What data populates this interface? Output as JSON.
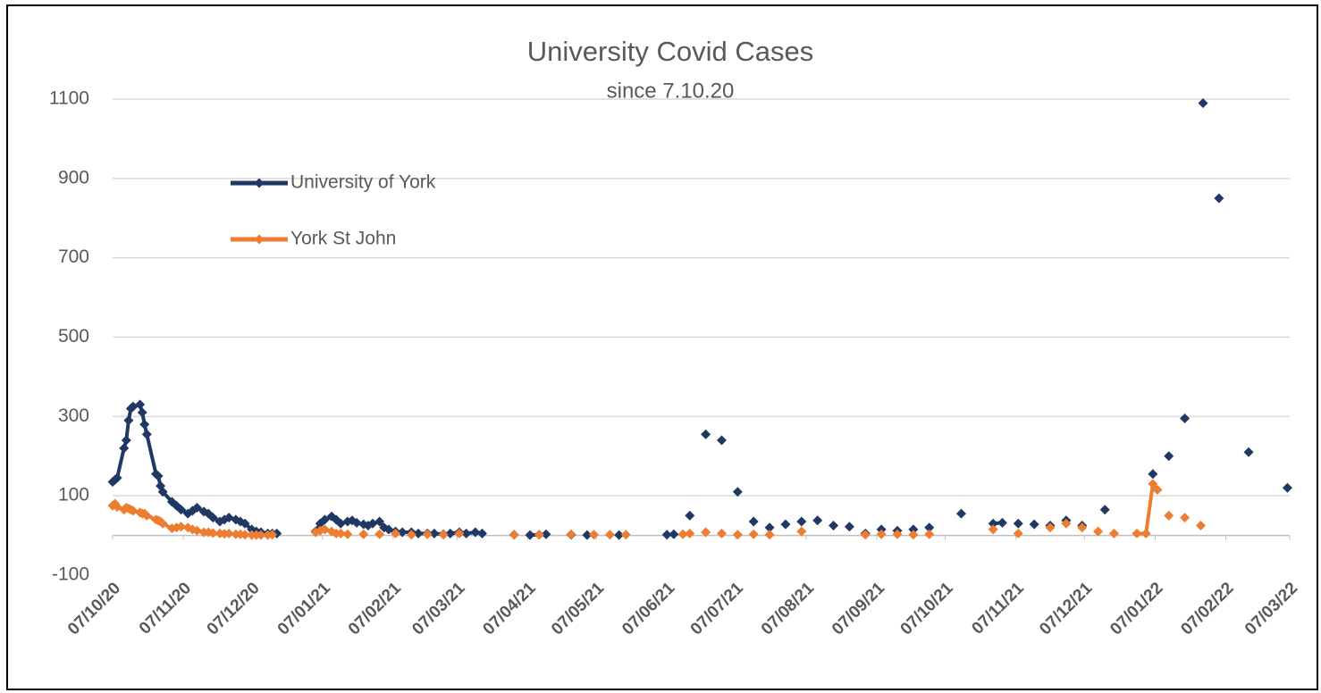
{
  "chart_data": {
    "type": "line",
    "title": "University Covid Cases",
    "subtitle": "since 7.10.20",
    "xlim": [
      "2020-10-07",
      "2022-03-07"
    ],
    "xticks": [
      {
        "value": "2020-10-07",
        "label": "07/10/20"
      },
      {
        "value": "2020-11-07",
        "label": "07/11/20"
      },
      {
        "value": "2020-12-07",
        "label": "07/12/20"
      },
      {
        "value": "2021-01-07",
        "label": "07/01/21"
      },
      {
        "value": "2021-02-07",
        "label": "07/02/21"
      },
      {
        "value": "2021-03-07",
        "label": "07/03/21"
      },
      {
        "value": "2021-04-07",
        "label": "07/04/21"
      },
      {
        "value": "2021-05-07",
        "label": "07/05/21"
      },
      {
        "value": "2021-06-07",
        "label": "07/06/21"
      },
      {
        "value": "2021-07-07",
        "label": "07/07/21"
      },
      {
        "value": "2021-08-07",
        "label": "07/08/21"
      },
      {
        "value": "2021-09-07",
        "label": "07/09/21"
      },
      {
        "value": "2021-10-07",
        "label": "07/10/21"
      },
      {
        "value": "2021-11-07",
        "label": "07/11/21"
      },
      {
        "value": "2021-12-07",
        "label": "07/12/21"
      },
      {
        "value": "2022-01-07",
        "label": "07/01/22"
      },
      {
        "value": "2022-02-07",
        "label": "07/02/22"
      },
      {
        "value": "2022-03-07",
        "label": "07/03/22"
      }
    ],
    "ylim": [
      -100,
      1100
    ],
    "yticks": [
      -100,
      100,
      300,
      500,
      700,
      900,
      1100
    ],
    "grid": true,
    "legend": "upper left",
    "series": [
      {
        "name": "University of York",
        "color": "#1f3864",
        "x": [
          "2020-10-07",
          "2020-10-08",
          "2020-10-09",
          "2020-10-12",
          "2020-10-13",
          "2020-10-14",
          "2020-10-15",
          "2020-10-16",
          "2020-10-19",
          "2020-10-20",
          "2020-10-21",
          "2020-10-22",
          "2020-10-26",
          "2020-10-27",
          "2020-10-28",
          "2020-10-29",
          "2020-11-02",
          "2020-11-04",
          "2020-11-06",
          "2020-11-09",
          "2020-11-11",
          "2020-11-13",
          "2020-11-16",
          "2020-11-18",
          "2020-11-20",
          "2020-11-23",
          "2020-11-25",
          "2020-11-27",
          "2020-11-30",
          "2020-12-02",
          "2020-12-04",
          "2020-12-07",
          "2020-12-09",
          "2020-12-11",
          "2020-12-14",
          "2020-12-16",
          "2020-12-18",
          "2021-01-04",
          "2021-01-06",
          "2021-01-08",
          "2021-01-11",
          "2021-01-13",
          "2021-01-15",
          "2021-01-18",
          "2021-01-20",
          "2021-01-22",
          "2021-01-25",
          "2021-01-27",
          "2021-01-29",
          "2021-02-01",
          "2021-02-03",
          "2021-02-05",
          "2021-02-08",
          "2021-02-11",
          "2021-02-15",
          "2021-02-18",
          "2021-02-22",
          "2021-02-25",
          "2021-03-01",
          "2021-03-04",
          "2021-03-08",
          "2021-03-11",
          "2021-03-15",
          "2021-03-18",
          "2021-04-01",
          "2021-04-08",
          "2021-04-12",
          "2021-04-15",
          "2021-04-26",
          "2021-05-03",
          "2021-05-17",
          "2021-06-07",
          "2021-06-10",
          "2021-06-17",
          "2021-06-24",
          "2021-07-01",
          "2021-07-08",
          "2021-07-15",
          "2021-07-22",
          "2021-07-29",
          "2021-08-05",
          "2021-08-12",
          "2021-08-19",
          "2021-08-26",
          "2021-09-02",
          "2021-09-09",
          "2021-09-16",
          "2021-09-23",
          "2021-09-30",
          "2021-10-14",
          "2021-10-28",
          "2021-11-01",
          "2021-11-08",
          "2021-11-15",
          "2021-11-22",
          "2021-11-29",
          "2021-12-06",
          "2021-12-16",
          "2022-01-06",
          "2022-01-13",
          "2022-01-20",
          "2022-01-28",
          "2022-02-04",
          "2022-02-17",
          "2022-03-06"
        ],
        "values": [
          135,
          140,
          145,
          220,
          240,
          290,
          320,
          325,
          330,
          310,
          280,
          255,
          155,
          150,
          125,
          110,
          85,
          75,
          65,
          55,
          62,
          70,
          60,
          55,
          45,
          35,
          40,
          45,
          40,
          35,
          30,
          15,
          10,
          8,
          5,
          5,
          5,
          10,
          30,
          40,
          48,
          40,
          30,
          35,
          38,
          32,
          28,
          25,
          30,
          35,
          20,
          15,
          10,
          8,
          8,
          5,
          5,
          5,
          3,
          5,
          8,
          5,
          8,
          5,
          2,
          1,
          2,
          3,
          2,
          1,
          1,
          2,
          3,
          50,
          255,
          240,
          110,
          35,
          20,
          28,
          35,
          38,
          25,
          22,
          5,
          15,
          12,
          15,
          20,
          55,
          30,
          32,
          30,
          28,
          25,
          38,
          25,
          65,
          155,
          200,
          295,
          1090,
          850,
          210,
          120
        ]
      },
      {
        "name": "York St John",
        "color": "#ed7d31",
        "x": [
          "2020-10-07",
          "2020-10-08",
          "2020-10-09",
          "2020-10-12",
          "2020-10-13",
          "2020-10-14",
          "2020-10-15",
          "2020-10-16",
          "2020-10-19",
          "2020-10-20",
          "2020-10-21",
          "2020-10-22",
          "2020-10-26",
          "2020-10-27",
          "2020-10-28",
          "2020-10-29",
          "2020-11-02",
          "2020-11-04",
          "2020-11-06",
          "2020-11-09",
          "2020-11-11",
          "2020-11-13",
          "2020-11-16",
          "2020-11-18",
          "2020-11-20",
          "2020-11-23",
          "2020-11-25",
          "2020-11-27",
          "2020-11-30",
          "2020-12-02",
          "2020-12-04",
          "2020-12-07",
          "2020-12-09",
          "2020-12-11",
          "2020-12-14",
          "2020-12-16",
          "2021-01-04",
          "2021-01-06",
          "2021-01-08",
          "2021-01-11",
          "2021-01-13",
          "2021-01-15",
          "2021-01-18",
          "2021-01-25",
          "2021-02-01",
          "2021-02-08",
          "2021-02-15",
          "2021-02-22",
          "2021-03-01",
          "2021-03-08",
          "2021-04-01",
          "2021-04-12",
          "2021-04-26",
          "2021-05-06",
          "2021-05-13",
          "2021-05-20",
          "2021-06-14",
          "2021-06-17",
          "2021-06-24",
          "2021-07-01",
          "2021-07-08",
          "2021-07-15",
          "2021-07-22",
          "2021-08-05",
          "2021-09-02",
          "2021-09-09",
          "2021-09-16",
          "2021-09-23",
          "2021-09-30",
          "2021-10-28",
          "2021-11-08",
          "2021-11-22",
          "2021-11-29",
          "2021-12-06",
          "2021-12-13",
          "2021-12-20",
          "2021-12-30",
          "2022-01-03",
          "2022-01-06",
          "2022-01-08",
          "2022-01-13",
          "2022-01-20",
          "2022-01-27"
        ],
        "values": [
          75,
          80,
          72,
          65,
          70,
          68,
          65,
          62,
          58,
          55,
          55,
          50,
          40,
          38,
          35,
          30,
          18,
          20,
          22,
          20,
          15,
          12,
          8,
          8,
          6,
          5,
          4,
          5,
          3,
          3,
          2,
          1,
          1,
          1,
          1,
          2,
          8,
          12,
          15,
          10,
          5,
          5,
          3,
          3,
          3,
          5,
          2,
          3,
          2,
          5,
          2,
          2,
          3,
          2,
          2,
          2,
          3,
          5,
          8,
          5,
          2,
          3,
          2,
          10,
          2,
          3,
          3,
          2,
          3,
          15,
          5,
          20,
          30,
          20,
          10,
          5,
          5,
          5,
          130,
          115,
          50,
          45,
          25
        ]
      }
    ]
  }
}
